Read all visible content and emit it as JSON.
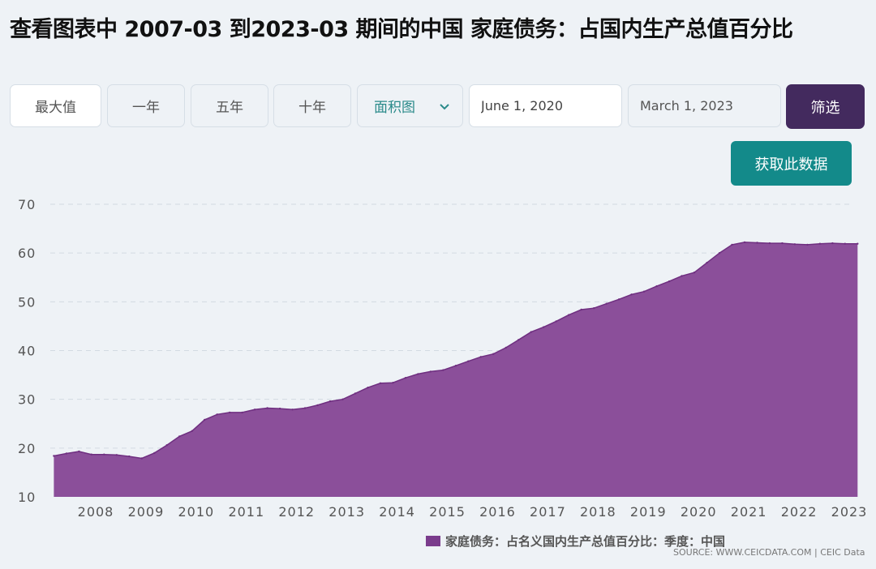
{
  "header": {
    "title": "查看图表中 2007-03 到2023-03 期间的中国 家庭债务：占国内生产总值百分比"
  },
  "controls": {
    "range_buttons": [
      "最大值",
      "一年",
      "五年",
      "十年"
    ],
    "chart_type_selected": "面积图",
    "start_date": "June 1, 2020",
    "end_date": "March 1, 2023",
    "filter_label": "筛选",
    "get_data_label": "获取此数据"
  },
  "legend": {
    "label": "家庭债务：占名义国内生产总值百分比：季度：中国"
  },
  "source": "SOURCE: WWW.CEICDATA.COM | CEIC Data",
  "colors": {
    "area_fill": "#8b4f9a",
    "area_stroke": "#6f2f80",
    "filter_button": "#432a5e",
    "get_data_button": "#138a8a"
  },
  "chart_data": {
    "type": "area",
    "title": "",
    "xlabel": "",
    "ylabel": "",
    "ylim": [
      10,
      70
    ],
    "yticks": [
      10,
      20,
      30,
      40,
      50,
      60,
      70
    ],
    "xticks": [
      "2008",
      "2009",
      "2010",
      "2011",
      "2012",
      "2013",
      "2014",
      "2015",
      "2016",
      "2017",
      "2018",
      "2019",
      "2020",
      "2021",
      "2022",
      "2023"
    ],
    "grid": true,
    "legend_position": "bottom",
    "series": [
      {
        "name": "家庭债务：占名义国内生产总值百分比：季度：中国",
        "x": [
          "2007-03",
          "2007-06",
          "2007-09",
          "2007-12",
          "2008-03",
          "2008-06",
          "2008-09",
          "2008-12",
          "2009-03",
          "2009-06",
          "2009-09",
          "2009-12",
          "2010-03",
          "2010-06",
          "2010-09",
          "2010-12",
          "2011-03",
          "2011-06",
          "2011-09",
          "2011-12",
          "2012-03",
          "2012-06",
          "2012-09",
          "2012-12",
          "2013-03",
          "2013-06",
          "2013-09",
          "2013-12",
          "2014-03",
          "2014-06",
          "2014-09",
          "2014-12",
          "2015-03",
          "2015-06",
          "2015-09",
          "2015-12",
          "2016-03",
          "2016-06",
          "2016-09",
          "2016-12",
          "2017-03",
          "2017-06",
          "2017-09",
          "2017-12",
          "2018-03",
          "2018-06",
          "2018-09",
          "2018-12",
          "2019-03",
          "2019-06",
          "2019-09",
          "2019-12",
          "2020-03",
          "2020-06",
          "2020-09",
          "2020-12",
          "2021-03",
          "2021-06",
          "2021-09",
          "2021-12",
          "2022-03",
          "2022-06",
          "2022-09",
          "2022-12",
          "2023-03"
        ],
        "values": [
          18.4,
          18.9,
          19.3,
          18.7,
          18.7,
          18.6,
          18.3,
          17.9,
          19.0,
          20.6,
          22.4,
          23.5,
          25.8,
          26.9,
          27.3,
          27.3,
          27.9,
          28.2,
          28.1,
          27.9,
          28.2,
          28.8,
          29.6,
          30.0,
          31.2,
          32.4,
          33.3,
          33.4,
          34.4,
          35.2,
          35.7,
          36.0,
          36.9,
          37.8,
          38.7,
          39.3,
          40.6,
          42.2,
          43.8,
          44.8,
          46.0,
          47.3,
          48.4,
          48.7,
          49.6,
          50.5,
          51.5,
          52.1,
          53.2,
          54.2,
          55.3,
          56.0,
          58.0,
          60.0,
          61.7,
          62.2,
          62.1,
          62.0,
          62.0,
          61.8,
          61.7,
          61.9,
          62.0,
          61.9,
          61.9
        ]
      }
    ]
  }
}
